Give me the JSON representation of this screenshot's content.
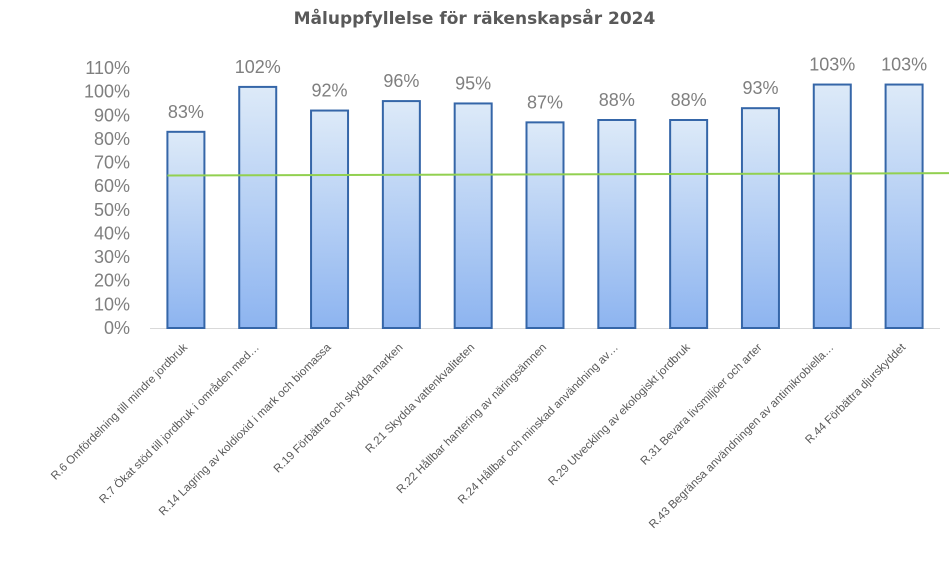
{
  "chart_data": {
    "type": "bar",
    "title": "Måluppfyllelse för räkenskapsår 2024",
    "categories": [
      "R.6 Omfördelning till mindre jordbruk",
      "R.7 Ökat stöd till jordbruk i områden med…",
      "R.14 Lagring av koldioxid i mark och biomassa",
      "R.19 Förbättra och skydda marken",
      "R.21 Skydda vattenkvaliteten",
      "R.22 Hållbar hantering av näringsämnen",
      "R.24 Hållbar och minskad användning av…",
      "R.29 Utveckling av ekologiskt jordbruk",
      "R.31 Bevara livsmiljöer och arter",
      "R.43 Begränsa användningen av antimikrobiella…",
      "R.44 Förbättra djurskyddet"
    ],
    "values": [
      83,
      102,
      92,
      96,
      95,
      87,
      88,
      88,
      93,
      103,
      103
    ],
    "data_labels": [
      "83%",
      "102%",
      "92%",
      "96%",
      "95%",
      "87%",
      "88%",
      "88%",
      "93%",
      "103%",
      "103%"
    ],
    "reference_line": {
      "start": 64.5,
      "end": 65.5,
      "color": "#92d050"
    },
    "ylim": [
      0,
      110
    ],
    "yticks": [
      0,
      10,
      20,
      30,
      40,
      50,
      60,
      70,
      80,
      90,
      100,
      110
    ],
    "ytick_labels": [
      "0%",
      "10%",
      "20%",
      "30%",
      "40%",
      "50%",
      "60%",
      "70%",
      "80%",
      "90%",
      "100%",
      "110%"
    ],
    "grid": false,
    "legend": "none",
    "xlabel": "",
    "ylabel": "",
    "colors": {
      "bar_fill_top": "#ddeaf8",
      "bar_fill_bottom": "#8db4f0",
      "bar_stroke": "#3566a8",
      "axis": "#d9d9d9",
      "text": "#7f7f7f"
    }
  }
}
